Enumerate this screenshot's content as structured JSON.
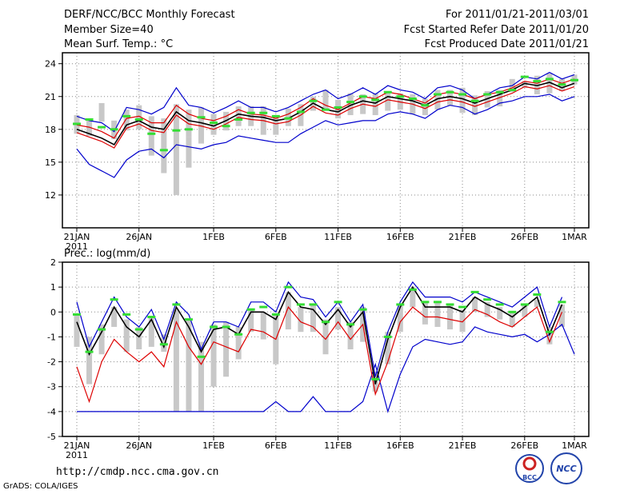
{
  "header": {
    "title_left": "DERF/NCC/BCC Monthly Forecast",
    "member_size": "Member Size=40",
    "variable": "Mean Surf. Temp.: °C",
    "period": "For 2011/01/21-2011/03/01",
    "start_date": "Fcst Started Refer Date 2011/01/20",
    "produced": "Fcst Produced Date 2011/01/21"
  },
  "footer": {
    "url": "http://cmdp.ncc.cma.gov.cn",
    "credit": "GrADS: COLA/IGES",
    "logo_bcc": "BCC",
    "logo_ncc": "NCC"
  },
  "colors": {
    "envelope": "#0000cc",
    "spread": "#dd0000",
    "mean": "#000000",
    "box": "#c8c8c8",
    "marker": "#33dd33"
  },
  "chart_data": [
    {
      "type": "line",
      "title": "Mean Surf. Temp.: °C",
      "x_labels": [
        "21JAN",
        "26JAN",
        "1FEB",
        "6FEB",
        "11FEB",
        "16FEB",
        "21FEB",
        "26FEB",
        "1MAR"
      ],
      "x_label_index": [
        0,
        5,
        11,
        16,
        21,
        26,
        31,
        36,
        40
      ],
      "year_label": "2011",
      "ylim": [
        9,
        25
      ],
      "yticks": [
        12,
        15,
        18,
        21,
        24
      ],
      "series": [
        {
          "name": "max",
          "values": [
            19.2,
            18.8,
            18.6,
            17.8,
            20.0,
            19.8,
            19.4,
            20.0,
            21.8,
            20.2,
            20.0,
            19.5,
            20.0,
            20.6,
            20.0,
            20.0,
            19.6,
            20.0,
            20.6,
            21.2,
            21.6,
            20.8,
            21.2,
            21.8,
            21.2,
            22.0,
            21.6,
            21.4,
            20.8,
            21.8,
            22.0,
            21.6,
            20.8,
            21.2,
            21.8,
            22.0,
            22.8,
            22.6,
            23.2,
            22.6,
            23.0
          ]
        },
        {
          "name": "upper",
          "values": [
            18.4,
            18.2,
            17.8,
            17.2,
            19.0,
            19.2,
            18.6,
            18.6,
            20.2,
            19.4,
            19.0,
            18.8,
            19.2,
            19.8,
            19.4,
            19.3,
            19.0,
            19.4,
            20.0,
            20.8,
            20.2,
            19.8,
            20.4,
            21.0,
            20.8,
            21.4,
            21.2,
            20.8,
            20.4,
            21.2,
            21.4,
            21.2,
            20.8,
            21.2,
            21.4,
            21.8,
            22.4,
            22.2,
            22.6,
            22.2,
            22.6
          ]
        },
        {
          "name": "mean",
          "values": [
            18.0,
            17.6,
            17.2,
            16.6,
            18.4,
            18.8,
            18.2,
            18.0,
            19.6,
            18.8,
            18.6,
            18.3,
            18.8,
            19.4,
            19.2,
            19.1,
            18.8,
            19.0,
            19.6,
            20.4,
            19.8,
            19.6,
            20.2,
            20.6,
            20.4,
            21.0,
            20.8,
            20.6,
            20.2,
            20.8,
            21.0,
            20.8,
            20.4,
            20.8,
            21.2,
            21.6,
            22.2,
            22.0,
            22.3,
            21.8,
            22.2
          ]
        },
        {
          "name": "lower",
          "values": [
            17.7,
            17.3,
            16.9,
            16.3,
            18.1,
            18.5,
            17.9,
            17.7,
            19.3,
            18.5,
            18.3,
            18.0,
            18.5,
            19.1,
            18.9,
            18.8,
            18.5,
            18.7,
            19.3,
            20.1,
            19.5,
            19.3,
            19.9,
            20.3,
            20.1,
            20.7,
            20.5,
            20.3,
            19.9,
            20.5,
            20.7,
            20.5,
            20.1,
            20.5,
            20.9,
            21.3,
            21.9,
            21.7,
            22.0,
            21.5,
            21.9
          ]
        },
        {
          "name": "min",
          "values": [
            16.2,
            14.8,
            14.2,
            13.6,
            15.2,
            16.0,
            16.2,
            15.4,
            16.6,
            16.4,
            16.2,
            16.6,
            16.8,
            17.4,
            17.2,
            17.0,
            16.8,
            16.8,
            17.6,
            18.2,
            18.8,
            18.4,
            18.6,
            18.8,
            18.8,
            19.4,
            19.6,
            19.4,
            19.0,
            19.8,
            20.2,
            20.0,
            19.4,
            19.8,
            20.4,
            20.6,
            21.0,
            21.0,
            21.2,
            20.6,
            21.0
          ]
        },
        {
          "name": "obs",
          "values": [
            18.5,
            18.9,
            18.2,
            18.0,
            19.2,
            18.9,
            17.6,
            16.1,
            17.9,
            18.0,
            19.1,
            18.6,
            18.3,
            18.9,
            19.5,
            19.5,
            19.2,
            19.0,
            19.6,
            20.6,
            19.8,
            20.0,
            20.5,
            21.0,
            20.7,
            21.4,
            21.0,
            20.8,
            20.2,
            21.2,
            21.4,
            21.2,
            20.6,
            21.2,
            21.4,
            21.6,
            22.8,
            22.4,
            22.6,
            22.1,
            22.5
          ]
        },
        {
          "name": "box_top",
          "values": [
            19.3,
            19.0,
            20.4,
            18.8,
            19.8,
            20.2,
            19.2,
            19.0,
            20.3,
            19.8,
            20.0,
            19.4,
            19.6,
            20.1,
            20.1,
            20.1,
            19.2,
            19.9,
            20.3,
            21.0,
            21.6,
            20.7,
            21.3,
            21.2,
            21.3,
            21.5,
            21.3,
            21.2,
            20.8,
            21.6,
            21.6,
            21.8,
            21.1,
            21.5,
            21.6,
            22.6,
            22.4,
            22.9,
            23.1,
            22.6,
            23.0
          ]
        },
        {
          "name": "box_bottom",
          "values": [
            17.6,
            17.4,
            18.7,
            17.1,
            17.9,
            18.0,
            15.6,
            15.5,
            16.6,
            17.3,
            16.7,
            17.5,
            17.9,
            18.3,
            18.3,
            17.5,
            17.5,
            18.3,
            18.3,
            19.7,
            19.8,
            19.0,
            19.3,
            19.4,
            19.3,
            19.7,
            19.8,
            19.4,
            19.3,
            19.8,
            20.2,
            19.5,
            19.3,
            20.0,
            20.1,
            21.4,
            21.8,
            21.2,
            21.3,
            21.5,
            22.1
          ]
        },
        {
          "name": "box_gap",
          "values": [
            null,
            null,
            null,
            null,
            null,
            null,
            null,
            14.0,
            12.0,
            14.5,
            null,
            null,
            null,
            null,
            null,
            null,
            null,
            null,
            null,
            null,
            null,
            null,
            null,
            null,
            null,
            null,
            null,
            null,
            null,
            null,
            null,
            null,
            null,
            null,
            null,
            null,
            null,
            null,
            null,
            null,
            null
          ]
        }
      ]
    },
    {
      "type": "line",
      "title": "Prec.: log(mm/d)",
      "x_labels": [
        "21JAN",
        "26JAN",
        "1FEB",
        "6FEB",
        "11FEB",
        "16FEB",
        "21FEB",
        "26FEB",
        "1MAR"
      ],
      "x_label_index": [
        0,
        5,
        11,
        16,
        21,
        26,
        31,
        36,
        40
      ],
      "year_label": "2011",
      "ylim": [
        -5,
        2
      ],
      "yticks": [
        -5,
        -4,
        -3,
        -2,
        -1,
        0,
        1,
        2
      ],
      "series": [
        {
          "name": "max",
          "values": [
            0.4,
            -1.4,
            -0.4,
            0.6,
            -0.2,
            -0.6,
            0.1,
            -1.1,
            0.4,
            -0.1,
            -1.5,
            -0.4,
            -0.4,
            -0.6,
            0.4,
            0.4,
            0.0,
            1.2,
            0.6,
            0.5,
            -0.2,
            0.4,
            -0.4,
            0.3,
            -2.6,
            -0.8,
            0.4,
            1.2,
            0.6,
            0.6,
            0.6,
            0.4,
            0.8,
            0.6,
            0.4,
            0.2,
            0.6,
            1.0,
            -0.6,
            0.6,
            null
          ]
        },
        {
          "name": "mean",
          "values": [
            -0.4,
            -1.7,
            -0.8,
            0.2,
            -0.6,
            -1.0,
            -0.3,
            -1.4,
            0.2,
            -0.6,
            -1.6,
            -0.7,
            -0.6,
            -0.9,
            0.0,
            0.0,
            -0.3,
            0.8,
            0.2,
            0.1,
            -0.5,
            0.1,
            -0.6,
            0.0,
            -2.9,
            -1.1,
            0.2,
            1.0,
            0.2,
            0.2,
            0.2,
            0.0,
            0.6,
            0.3,
            0.1,
            -0.2,
            0.2,
            0.6,
            -0.9,
            0.3,
            null
          ]
        },
        {
          "name": "spread_low",
          "values": [
            -2.2,
            -3.6,
            -2.0,
            -1.1,
            -1.6,
            -2.0,
            -1.6,
            -2.2,
            -0.4,
            -1.4,
            -2.1,
            -1.2,
            -1.4,
            -1.6,
            -0.7,
            -0.8,
            -1.1,
            0.2,
            -0.4,
            -0.6,
            -1.1,
            -0.4,
            -1.1,
            -0.5,
            -3.3,
            -2.0,
            -0.4,
            0.2,
            -0.2,
            -0.2,
            -0.3,
            -0.4,
            0.1,
            -0.1,
            -0.4,
            -0.6,
            -0.2,
            0.2,
            -1.2,
            0.0,
            null
          ]
        },
        {
          "name": "min",
          "values": [
            -4.0,
            -4.0,
            -4.0,
            -4.0,
            -4.0,
            -4.0,
            -4.0,
            -4.0,
            -4.0,
            -4.0,
            -4.0,
            -4.0,
            -4.0,
            -4.0,
            -4.0,
            -4.0,
            -3.6,
            -4.0,
            -4.0,
            -3.4,
            -4.0,
            -4.0,
            -4.0,
            -3.6,
            -2.1,
            -4.0,
            -2.5,
            -1.4,
            -1.1,
            -1.2,
            -1.3,
            -1.2,
            -0.6,
            -0.8,
            -0.9,
            -1.0,
            -0.9,
            -1.2,
            -0.9,
            -0.5,
            -1.7
          ]
        },
        {
          "name": "obs",
          "values": [
            -0.1,
            -1.6,
            -0.7,
            0.5,
            -0.1,
            -0.7,
            -0.2,
            -1.3,
            0.3,
            -0.3,
            -1.8,
            -0.6,
            -0.6,
            -0.9,
            0.1,
            0.2,
            -0.1,
            1.0,
            0.3,
            0.3,
            -0.4,
            0.4,
            -0.5,
            0.1,
            -2.7,
            -1.0,
            0.3,
            0.9,
            0.4,
            0.4,
            0.3,
            0.2,
            0.8,
            0.5,
            0.3,
            0.0,
            0.3,
            0.7,
            -0.8,
            0.4,
            null
          ]
        },
        {
          "name": "box_top",
          "values": [
            -0.1,
            -1.0,
            -0.5,
            0.2,
            -0.3,
            -0.6,
            -0.2,
            -0.9,
            0.1,
            -0.3,
            -1.2,
            -0.5,
            -0.4,
            -0.6,
            0.1,
            0.0,
            -0.1,
            0.8,
            0.2,
            0.3,
            -0.3,
            0.2,
            -0.4,
            0.2,
            -2.4,
            -0.8,
            0.3,
            0.9,
            0.4,
            0.4,
            0.3,
            0.1,
            0.6,
            0.4,
            0.2,
            0.0,
            0.3,
            0.5,
            -0.6,
            0.3,
            null
          ]
        },
        {
          "name": "box_bottom",
          "values": [
            -1.4,
            -2.9,
            -1.7,
            -0.6,
            -1.6,
            -1.5,
            -1.4,
            -1.6,
            -4.0,
            -4.0,
            -4.0,
            -3.0,
            -2.6,
            -1.9,
            -0.8,
            -1.1,
            -2.1,
            -0.7,
            -0.8,
            -0.8,
            -1.7,
            -0.7,
            -1.5,
            -1.2,
            -3.2,
            -2.1,
            -0.8,
            0.2,
            -0.5,
            -0.6,
            -0.7,
            -0.8,
            0.0,
            -0.2,
            -0.3,
            -0.6,
            -0.2,
            0.2,
            -1.3,
            -0.6,
            null
          ]
        }
      ]
    }
  ]
}
